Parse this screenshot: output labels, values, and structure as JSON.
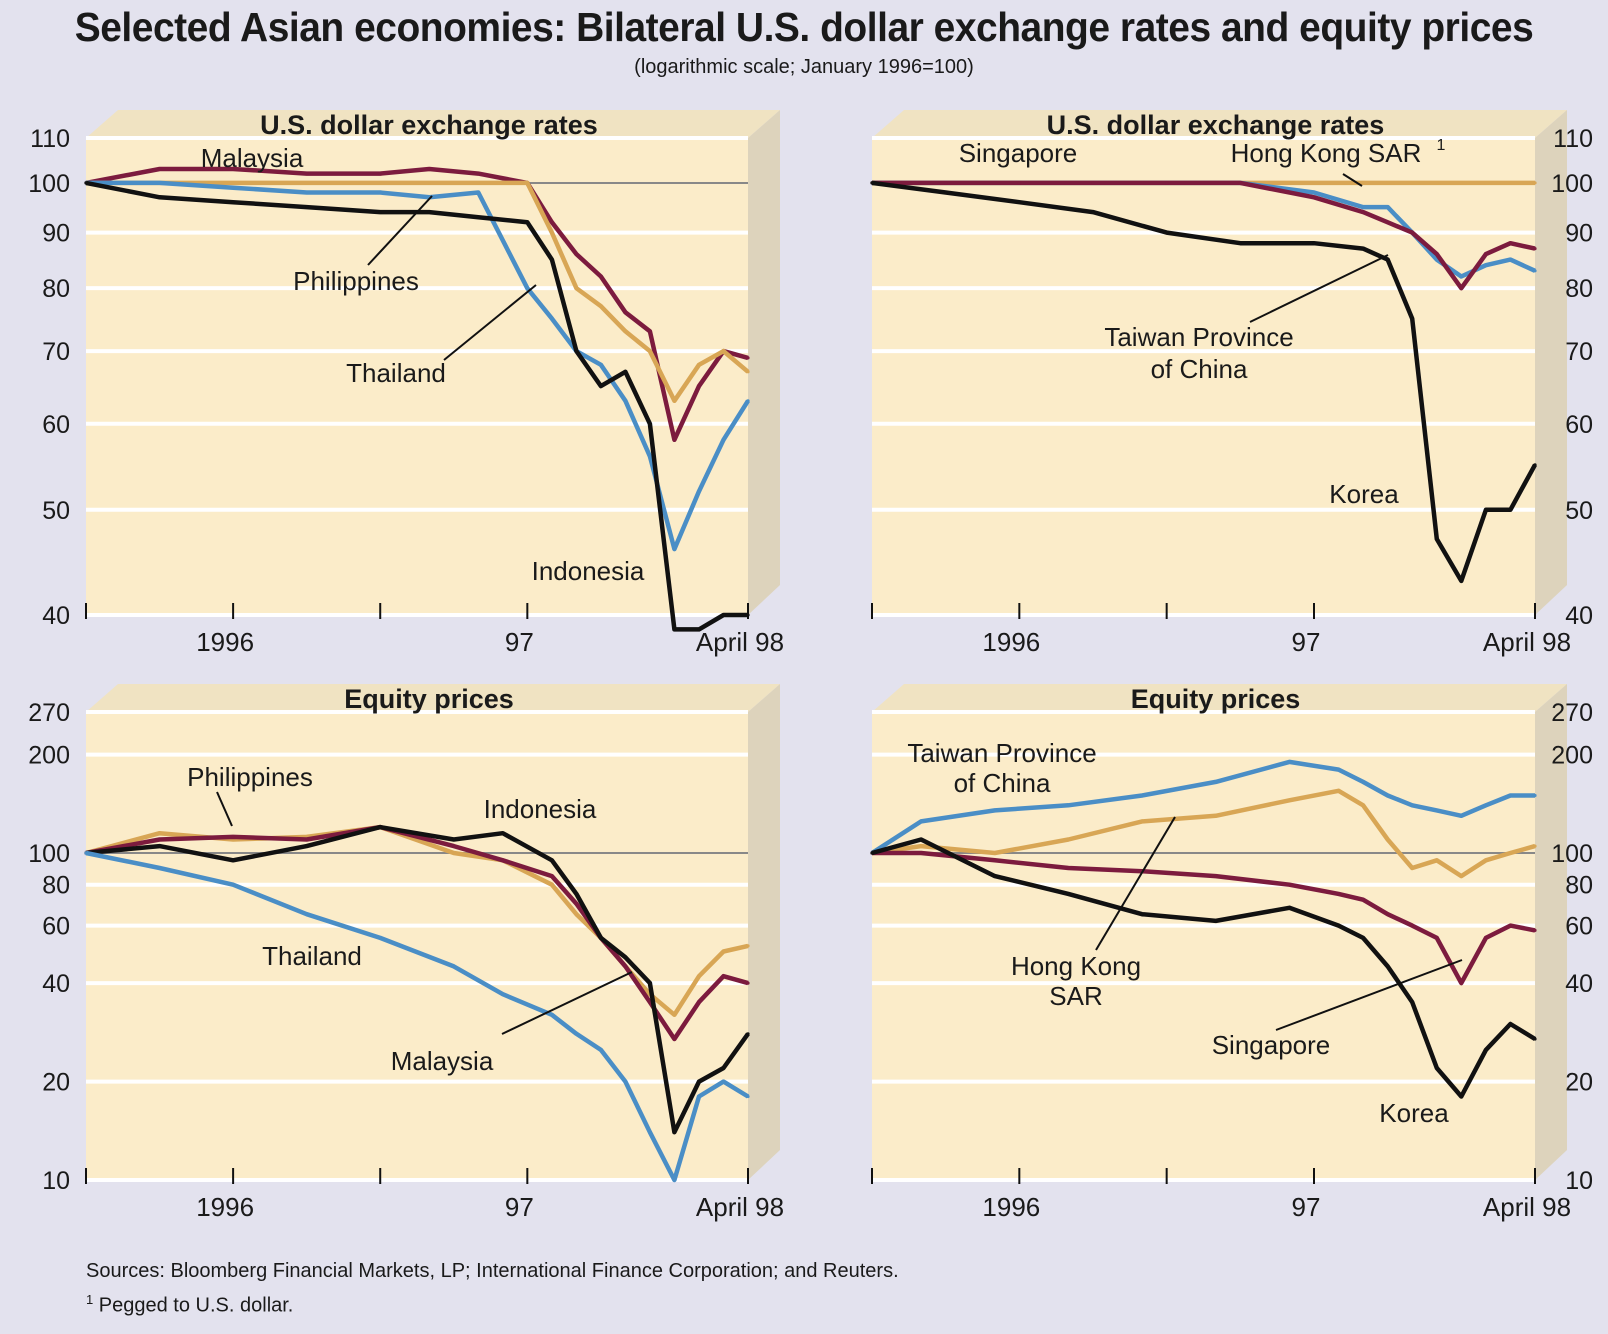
{
  "title": "Selected Asian economies: Bilateral U.S. dollar exchange rates and equity prices",
  "subtitle": "(logarithmic scale; January 1996=100)",
  "sources": "Sources:  Bloomberg Financial Markets, LP; International Finance Corporation; and Reuters.",
  "footnote": {
    "marker": "1",
    "text": "Pegged to U.S. dollar."
  },
  "colors": {
    "panel_fill": "#fbecc9",
    "panel_side": "#ddd3bc",
    "baseline": "#888888",
    "grid": "#ffffff",
    "black_series": "#111111",
    "blue_series": "#4a8ec6",
    "maroon_series": "#7c1b3e",
    "tan_series": "#d8a655"
  },
  "chart_data": [
    {
      "type": "line",
      "title": "U.S. dollar exchange rates",
      "y_scale": "log",
      "ylim": [
        40,
        110
      ],
      "y_ticks": [
        "110",
        "100",
        "90",
        "80",
        "70",
        "60",
        "50",
        "40"
      ],
      "x_ticks": [
        "1996",
        "97",
        "April 98"
      ],
      "x_range": [
        "1996-01",
        "1998-04"
      ],
      "grid": true,
      "x": [
        "1996-01",
        "1996-04",
        "1996-07",
        "1996-10",
        "1997-01",
        "1997-03",
        "1997-05",
        "1997-07",
        "1997-08",
        "1997-09",
        "1997-10",
        "1997-11",
        "1997-12",
        "1998-01",
        "1998-02",
        "1998-03",
        "1998-04"
      ],
      "series": [
        {
          "name": "Malaysia",
          "color_key": "maroon_series",
          "values": [
            100,
            103,
            103,
            102,
            102,
            103,
            102,
            100,
            92,
            86,
            82,
            76,
            73,
            58,
            65,
            70,
            69
          ]
        },
        {
          "name": "Philippines",
          "color_key": "tan_series",
          "values": [
            100,
            100,
            100,
            100,
            100,
            100,
            100,
            100,
            90,
            80,
            77,
            73,
            70,
            63,
            68,
            70,
            67
          ]
        },
        {
          "name": "Thailand",
          "color_key": "blue_series",
          "values": [
            100,
            100,
            99,
            98,
            98,
            97,
            98,
            80,
            75,
            70,
            68,
            63,
            56,
            46,
            52,
            58,
            63
          ]
        },
        {
          "name": "Indonesia",
          "color_key": "black_series",
          "values": [
            100,
            97,
            96,
            95,
            94,
            94,
            93,
            92,
            85,
            70,
            65,
            67,
            60,
            38,
            35,
            40,
            40
          ]
        }
      ],
      "labels": [
        "Malaysia",
        "Philippines",
        "Thailand",
        "Indonesia"
      ]
    },
    {
      "type": "line",
      "title": "U.S. dollar exchange rates",
      "y_scale": "log",
      "ylim": [
        40,
        110
      ],
      "y_ticks": [
        "110",
        "100",
        "90",
        "80",
        "70",
        "60",
        "50",
        "40"
      ],
      "x_ticks": [
        "1996",
        "97",
        "April 98"
      ],
      "x_range": [
        "1996-01",
        "1998-04"
      ],
      "grid": true,
      "x": [
        "1996-01",
        "1996-04",
        "1996-07",
        "1996-10",
        "1997-01",
        "1997-04",
        "1997-07",
        "1997-09",
        "1997-10",
        "1997-11",
        "1997-12",
        "1998-01",
        "1998-02",
        "1998-03",
        "1998-04"
      ],
      "series": [
        {
          "name": "Hong Kong SAR",
          "color_key": "tan_series",
          "values": [
            100,
            100,
            100,
            100,
            100,
            100,
            100,
            100,
            100,
            100,
            100,
            100,
            100,
            100,
            100
          ]
        },
        {
          "name": "Singapore",
          "color_key": "blue_series",
          "values": [
            100,
            100,
            100,
            100,
            100,
            100,
            98,
            95,
            95,
            90,
            85,
            82,
            84,
            85,
            83
          ]
        },
        {
          "name": "Taiwan Province of China",
          "color_key": "maroon_series",
          "values": [
            100,
            100,
            100,
            100,
            100,
            100,
            97,
            94,
            92,
            90,
            86,
            80,
            86,
            88,
            87
          ]
        },
        {
          "name": "Korea",
          "color_key": "black_series",
          "values": [
            100,
            98,
            96,
            94,
            90,
            88,
            88,
            87,
            85,
            75,
            47,
            43,
            50,
            50,
            55
          ]
        }
      ],
      "labels": [
        "Singapore",
        "Hong Kong SAR",
        "1",
        "Taiwan Province",
        "of China",
        "Korea"
      ]
    },
    {
      "type": "line",
      "title": "Equity prices",
      "y_scale": "log",
      "ylim": [
        10,
        270
      ],
      "y_ticks": [
        "270",
        "200",
        "100",
        "80",
        "60",
        "40",
        "20",
        "10"
      ],
      "x_ticks": [
        "1996",
        "97",
        "April 98"
      ],
      "x_range": [
        "1996-01",
        "1998-04"
      ],
      "grid": true,
      "x": [
        "1996-01",
        "1996-04",
        "1996-07",
        "1996-10",
        "1997-01",
        "1997-04",
        "1997-06",
        "1997-08",
        "1997-09",
        "1997-10",
        "1997-11",
        "1997-12",
        "1998-01",
        "1998-02",
        "1998-03",
        "1998-04"
      ],
      "series": [
        {
          "name": "Philippines",
          "color_key": "tan_series",
          "values": [
            100,
            115,
            110,
            112,
            120,
            100,
            95,
            80,
            65,
            55,
            45,
            37,
            32,
            42,
            50,
            52
          ]
        },
        {
          "name": "Malaysia",
          "color_key": "maroon_series",
          "values": [
            100,
            110,
            112,
            110,
            120,
            105,
            95,
            85,
            70,
            55,
            45,
            35,
            27,
            35,
            42,
            40
          ]
        },
        {
          "name": "Indonesia",
          "color_key": "black_series",
          "values": [
            100,
            105,
            95,
            105,
            120,
            110,
            115,
            95,
            75,
            55,
            48,
            40,
            14,
            20,
            22,
            28
          ]
        },
        {
          "name": "Thailand",
          "color_key": "blue_series",
          "values": [
            100,
            90,
            80,
            65,
            55,
            45,
            37,
            32,
            28,
            25,
            20,
            14,
            10,
            18,
            20,
            18
          ]
        }
      ],
      "labels": [
        "Philippines",
        "Indonesia",
        "Thailand",
        "Malaysia"
      ]
    },
    {
      "type": "line",
      "title": "Equity prices",
      "y_scale": "log",
      "ylim": [
        10,
        270
      ],
      "y_ticks": [
        "270",
        "200",
        "100",
        "80",
        "60",
        "40",
        "20",
        "10"
      ],
      "x_ticks": [
        "1996",
        "97",
        "April 98"
      ],
      "x_range": [
        "1996-01",
        "1998-04"
      ],
      "grid": true,
      "x": [
        "1996-01",
        "1996-03",
        "1996-06",
        "1996-09",
        "1996-12",
        "1997-03",
        "1997-06",
        "1997-08",
        "1997-09",
        "1997-10",
        "1997-11",
        "1997-12",
        "1998-01",
        "1998-02",
        "1998-03",
        "1998-04"
      ],
      "series": [
        {
          "name": "Taiwan Province of China",
          "color_key": "blue_series",
          "values": [
            100,
            125,
            135,
            140,
            150,
            165,
            190,
            180,
            165,
            150,
            140,
            135,
            130,
            140,
            150,
            150
          ]
        },
        {
          "name": "Hong Kong SAR",
          "color_key": "tan_series",
          "values": [
            100,
            105,
            100,
            110,
            125,
            130,
            145,
            155,
            140,
            110,
            90,
            95,
            85,
            95,
            100,
            105
          ]
        },
        {
          "name": "Singapore",
          "color_key": "maroon_series",
          "values": [
            100,
            100,
            95,
            90,
            88,
            85,
            80,
            75,
            72,
            65,
            60,
            55,
            40,
            55,
            60,
            58
          ]
        },
        {
          "name": "Korea",
          "color_key": "black_series",
          "values": [
            100,
            110,
            85,
            75,
            65,
            62,
            68,
            60,
            55,
            45,
            35,
            22,
            18,
            25,
            30,
            27
          ]
        }
      ],
      "labels": [
        "Taiwan Province",
        "of China",
        "Hong Kong",
        "SAR",
        "Singapore",
        "Korea"
      ]
    }
  ]
}
